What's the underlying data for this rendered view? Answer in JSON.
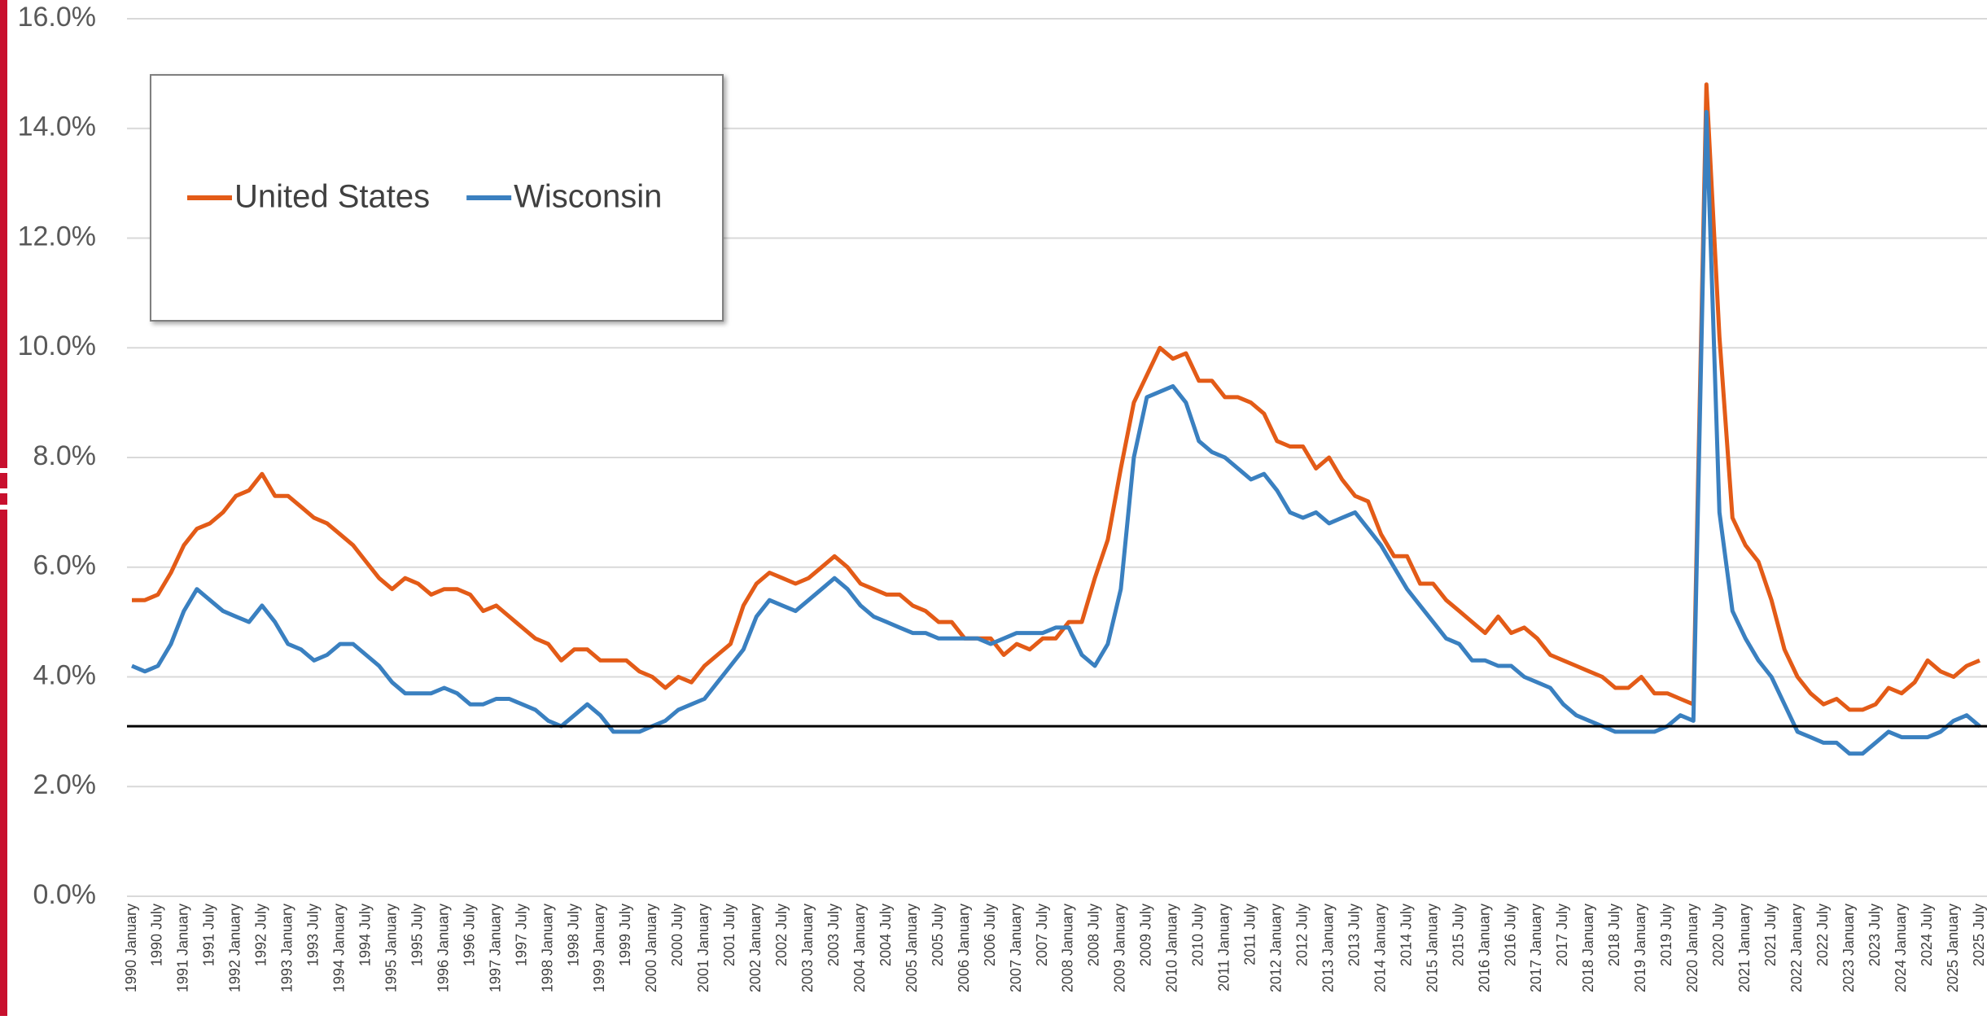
{
  "chart_data": {
    "type": "line",
    "categories": [
      "1990 January",
      null,
      "1990 July",
      null,
      "1991 January",
      null,
      "1991 July",
      null,
      "1992 January",
      null,
      "1992 July",
      null,
      "1993 January",
      null,
      "1993 July",
      null,
      "1994 January",
      null,
      "1994 July",
      null,
      "1995 January",
      null,
      "1995 July",
      null,
      "1996 January",
      null,
      "1996 July",
      null,
      "1997 January",
      null,
      "1997 July",
      null,
      "1998 January",
      null,
      "1998 July",
      null,
      "1999 January",
      null,
      "1999 July",
      null,
      "2000 January",
      null,
      "2000 July",
      null,
      "2001 January",
      null,
      "2001 July",
      null,
      "2002 January",
      null,
      "2002 July",
      null,
      "2003 January",
      null,
      "2003 July",
      null,
      "2004 January",
      null,
      "2004 July",
      null,
      "2005 January",
      null,
      "2005 July",
      null,
      "2006 January",
      null,
      "2006 July",
      null,
      "2007 January",
      null,
      "2007 July",
      null,
      "2008 January",
      null,
      "2008 July",
      null,
      "2009 January",
      null,
      "2009 July",
      null,
      "2010 January",
      null,
      "2010 July",
      null,
      "2011 January",
      null,
      "2011 July",
      null,
      "2012 January",
      null,
      "2012 July",
      null,
      "2013 January",
      null,
      "2013 July",
      null,
      "2014 January",
      null,
      "2014 July",
      null,
      "2015 January",
      null,
      "2015 July",
      null,
      "2016 January",
      null,
      "2016 July",
      null,
      "2017 January",
      null,
      "2017 July",
      null,
      "2018 January",
      null,
      "2018 July",
      null,
      "2019 January",
      null,
      "2019 July",
      null,
      "2020 January",
      null,
      "2020 July",
      null,
      "2021 January",
      null,
      "2021 July",
      null,
      "2022 January",
      null,
      "2022 July",
      null,
      "2023 January",
      null,
      "2023 July",
      null,
      "2024 January",
      null,
      "2024 July",
      null,
      "2025 January",
      null,
      "2025 July"
    ],
    "series": [
      {
        "name": "United States",
        "color": "#e35b17",
        "values": [
          5.4,
          5.4,
          5.5,
          5.9,
          6.4,
          6.7,
          6.8,
          7.0,
          7.3,
          7.4,
          7.7,
          7.3,
          7.3,
          7.1,
          6.9,
          6.8,
          6.6,
          6.4,
          6.1,
          5.8,
          5.6,
          5.8,
          5.7,
          5.5,
          5.6,
          5.6,
          5.5,
          5.2,
          5.3,
          5.1,
          4.9,
          4.7,
          4.6,
          4.3,
          4.5,
          4.5,
          4.3,
          4.3,
          4.3,
          4.1,
          4.0,
          3.8,
          4.0,
          3.9,
          4.2,
          4.4,
          4.6,
          5.3,
          5.7,
          5.9,
          5.8,
          5.7,
          5.8,
          6.0,
          6.2,
          6.0,
          5.7,
          5.6,
          5.5,
          5.5,
          5.3,
          5.2,
          5.0,
          5.0,
          4.7,
          4.7,
          4.7,
          4.4,
          4.6,
          4.5,
          4.7,
          4.7,
          5.0,
          5.0,
          5.8,
          6.5,
          7.8,
          9.0,
          9.5,
          10.0,
          9.8,
          9.9,
          9.4,
          9.4,
          9.1,
          9.1,
          9.0,
          8.8,
          8.3,
          8.2,
          8.2,
          7.8,
          8.0,
          7.6,
          7.3,
          7.2,
          6.6,
          6.2,
          6.2,
          5.7,
          5.7,
          5.4,
          5.2,
          5.0,
          4.8,
          5.1,
          4.8,
          4.9,
          4.7,
          4.4,
          4.3,
          4.2,
          4.1,
          4.0,
          3.8,
          3.8,
          4.0,
          3.7,
          3.7,
          3.6,
          3.5,
          14.8,
          10.2,
          6.9,
          6.4,
          6.1,
          5.4,
          4.5,
          4.0,
          3.7,
          3.5,
          3.6,
          3.4,
          3.4,
          3.5,
          3.8,
          3.7,
          3.9,
          4.3,
          4.1,
          4.0,
          4.2,
          4.3
        ]
      },
      {
        "name": "Wisconsin",
        "color": "#3a80c0",
        "values": [
          4.2,
          4.1,
          4.2,
          4.6,
          5.2,
          5.6,
          5.4,
          5.2,
          5.1,
          5.0,
          5.3,
          5.0,
          4.6,
          4.5,
          4.3,
          4.4,
          4.6,
          4.6,
          4.4,
          4.2,
          3.9,
          3.7,
          3.7,
          3.7,
          3.8,
          3.7,
          3.5,
          3.5,
          3.6,
          3.6,
          3.5,
          3.4,
          3.2,
          3.1,
          3.3,
          3.5,
          3.3,
          3.0,
          3.0,
          3.0,
          3.1,
          3.2,
          3.4,
          3.5,
          3.6,
          3.9,
          4.2,
          4.5,
          5.1,
          5.4,
          5.3,
          5.2,
          5.4,
          5.6,
          5.8,
          5.6,
          5.3,
          5.1,
          5.0,
          4.9,
          4.8,
          4.8,
          4.7,
          4.7,
          4.7,
          4.7,
          4.6,
          4.7,
          4.8,
          4.8,
          4.8,
          4.9,
          4.9,
          4.4,
          4.2,
          4.6,
          5.6,
          8.0,
          9.1,
          9.2,
          9.3,
          9.0,
          8.3,
          8.1,
          8.0,
          7.8,
          7.6,
          7.7,
          7.4,
          7.0,
          6.9,
          7.0,
          6.8,
          6.9,
          7.0,
          6.7,
          6.4,
          6.0,
          5.6,
          5.3,
          5.0,
          4.7,
          4.6,
          4.3,
          4.3,
          4.2,
          4.2,
          4.0,
          3.9,
          3.8,
          3.5,
          3.3,
          3.2,
          3.1,
          3.0,
          3.0,
          3.0,
          3.0,
          3.1,
          3.3,
          3.2,
          14.3,
          7.0,
          5.2,
          4.7,
          4.3,
          4.0,
          3.5,
          3.0,
          2.9,
          2.8,
          2.8,
          2.6,
          2.6,
          2.8,
          3.0,
          2.9,
          2.9,
          2.9,
          3.0,
          3.2,
          3.3,
          3.1
        ]
      }
    ],
    "reference_line": 3.1,
    "ylim": [
      0,
      16
    ],
    "yticks": [
      {
        "value": 0,
        "label": "0.0%"
      },
      {
        "value": 2,
        "label": "2.0%"
      },
      {
        "value": 4,
        "label": "4.0%"
      },
      {
        "value": 6,
        "label": "6.0%"
      },
      {
        "value": 8,
        "label": "8.0%"
      },
      {
        "value": 10,
        "label": "10.0%"
      },
      {
        "value": 12,
        "label": "12.0%"
      },
      {
        "value": 14,
        "label": "14.0%"
      },
      {
        "value": 16,
        "label": "16.0%"
      }
    ],
    "grid": true,
    "legend": "upper left"
  }
}
